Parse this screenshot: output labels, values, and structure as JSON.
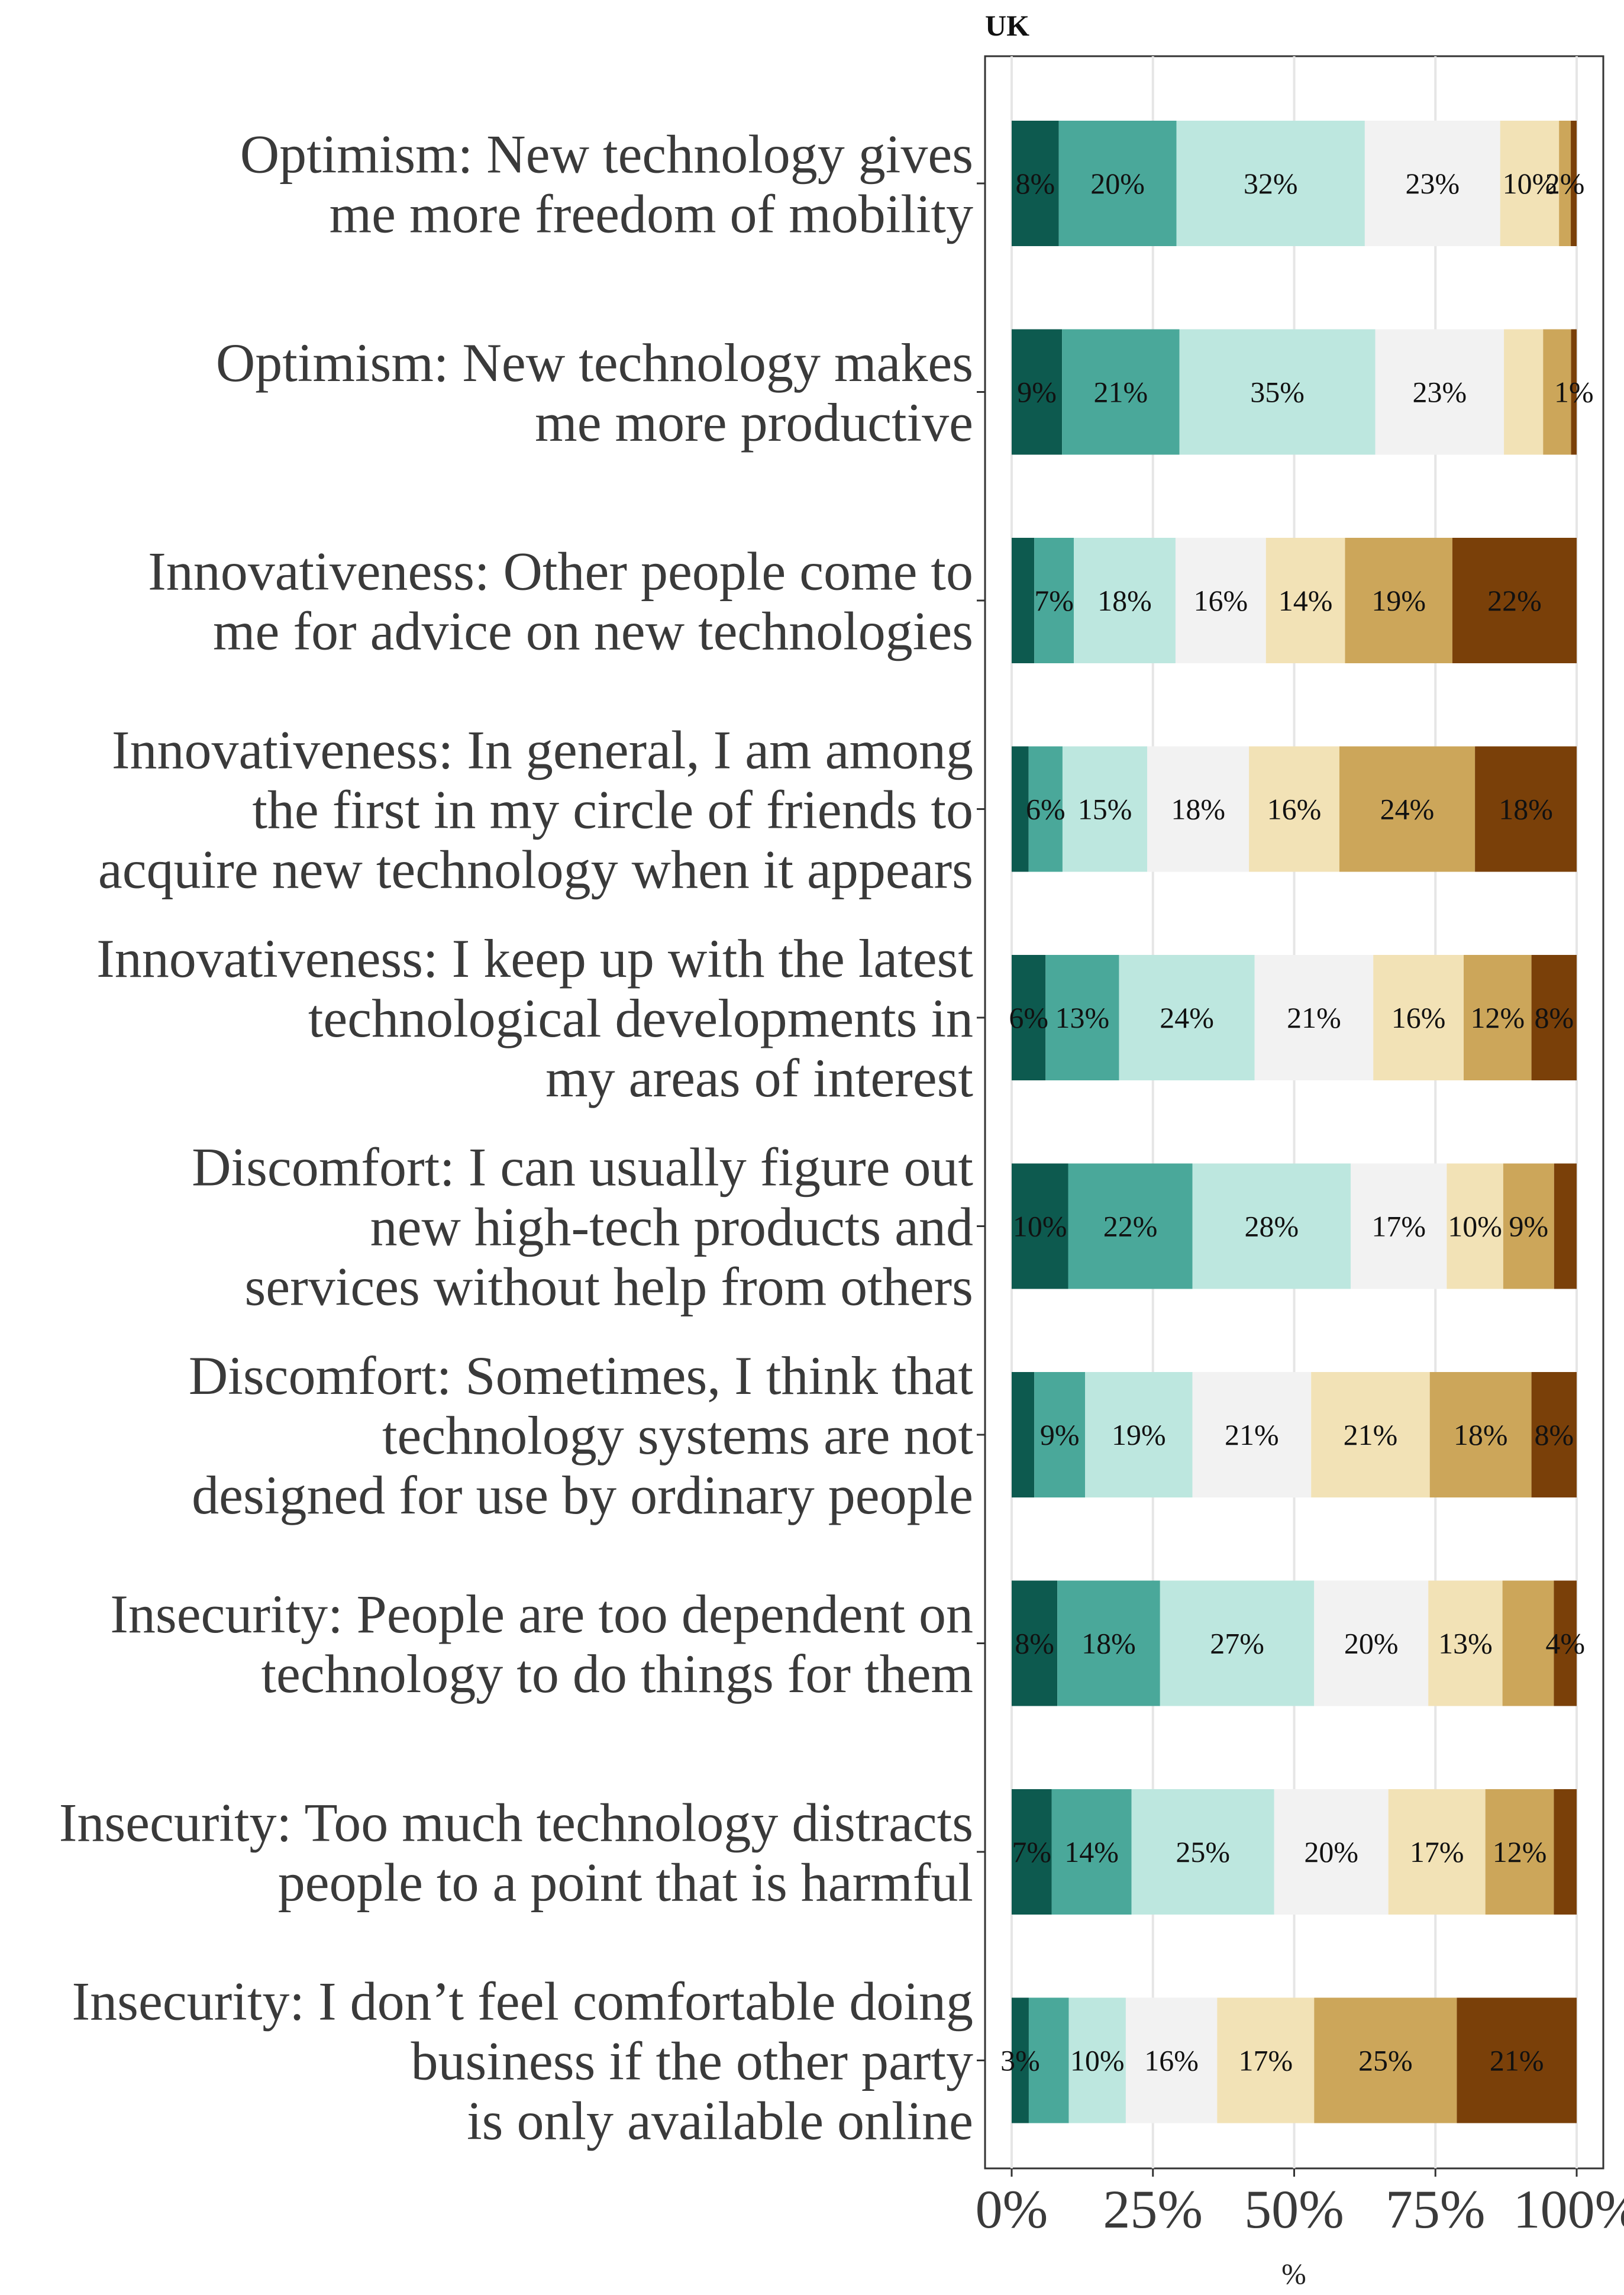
{
  "chart_data": {
    "type": "bar",
    "orientation": "horizontal",
    "stacked": true,
    "title": "UK",
    "xlabel": "%",
    "ylabel": "",
    "xlim": [
      0,
      100
    ],
    "xticks": [
      "0%",
      "25%",
      "50%",
      "75%",
      "100%"
    ],
    "grid": true,
    "legend": "none",
    "colors": [
      "#0d5a4f",
      "#4aa89a",
      "#bde7df",
      "#f2f2f2",
      "#f2e2b6",
      "#cca65a",
      "#7a4009"
    ],
    "categories": [
      [
        "Optimism: New technology gives",
        "me more freedom of mobility"
      ],
      [
        "Optimism: New technology makes",
        "me more productive"
      ],
      [
        "Innovativeness: Other people come to",
        "me for advice on new technologies"
      ],
      [
        "Innovativeness: In general, I am among",
        "the first in my circle of friends to",
        "acquire new technology when it appears"
      ],
      [
        "Innovativeness: I keep up with the latest",
        "technological developments in",
        "my areas of interest"
      ],
      [
        "Discomfort: I can usually figure out",
        "new high-tech products and",
        "services without help from others"
      ],
      [
        "Discomfort: Sometimes, I think that",
        "technology systems are not",
        "designed for use by ordinary people"
      ],
      [
        "Insecurity: People are too dependent on",
        "technology to do things for them"
      ],
      [
        "Insecurity: Too much technology distracts",
        "people to a point that is harmful"
      ],
      [
        "Insecurity: I don’t feel comfortable doing",
        "business if the other party",
        "is only available online"
      ]
    ],
    "values": [
      [
        8,
        20,
        32,
        23,
        10,
        2,
        1
      ],
      [
        9,
        21,
        35,
        23,
        7,
        5,
        1
      ],
      [
        4,
        7,
        18,
        16,
        14,
        19,
        22
      ],
      [
        3,
        6,
        15,
        18,
        16,
        24,
        18
      ],
      [
        6,
        13,
        24,
        21,
        16,
        12,
        8
      ],
      [
        10,
        22,
        28,
        17,
        10,
        9,
        4
      ],
      [
        4,
        9,
        19,
        21,
        21,
        18,
        8
      ],
      [
        8,
        18,
        27,
        20,
        13,
        9,
        4
      ],
      [
        7,
        14,
        25,
        20,
        17,
        12,
        4
      ],
      [
        3,
        7,
        10,
        16,
        17,
        25,
        21
      ]
    ],
    "data_labels": [
      [
        "8%",
        "20%",
        "32%",
        "23%",
        "10%",
        "2%",
        ""
      ],
      [
        "9%",
        "21%",
        "35%",
        "23%",
        "",
        "",
        "1%"
      ],
      [
        "",
        "7%",
        "18%",
        "16%",
        "14%",
        "19%",
        "22%"
      ],
      [
        "",
        "6%",
        "15%",
        "18%",
        "16%",
        "24%",
        "18%"
      ],
      [
        "6%",
        "13%",
        "24%",
        "21%",
        "16%",
        "12%",
        "8%"
      ],
      [
        "10%",
        "22%",
        "28%",
        "17%",
        "10%",
        "9%",
        ""
      ],
      [
        "",
        "9%",
        "19%",
        "21%",
        "21%",
        "18%",
        "8%"
      ],
      [
        "8%",
        "18%",
        "27%",
        "20%",
        "13%",
        "",
        "4%"
      ],
      [
        "7%",
        "14%",
        "25%",
        "20%",
        "17%",
        "12%",
        ""
      ],
      [
        "3%",
        "",
        "10%",
        "16%",
        "17%",
        "25%",
        "21%"
      ]
    ]
  }
}
